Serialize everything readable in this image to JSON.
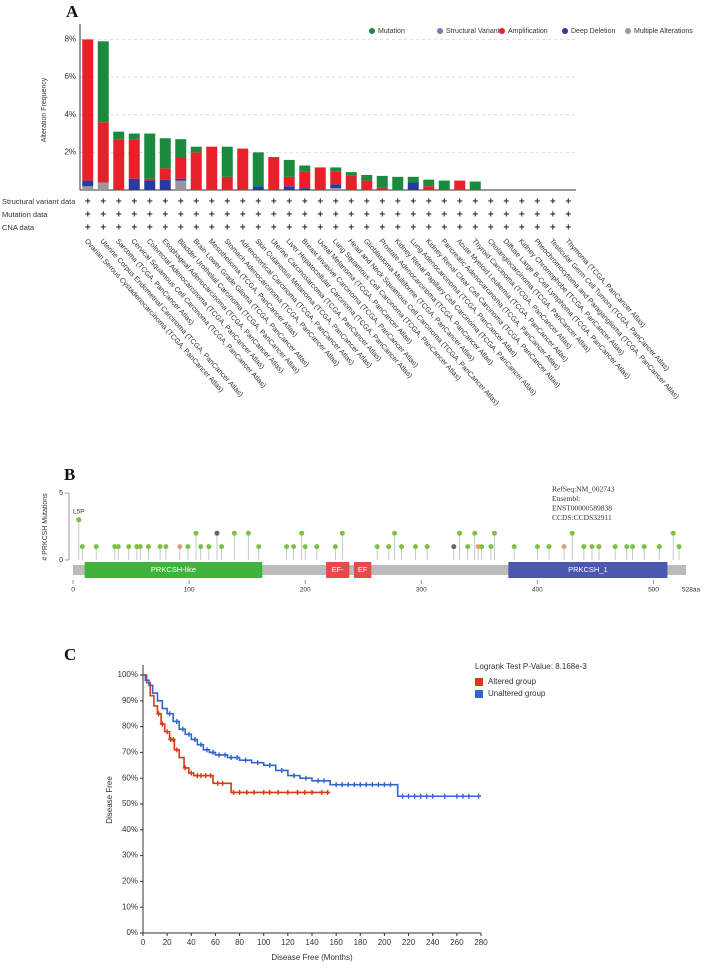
{
  "chart_data": [
    {
      "type": "bar",
      "panel_label": "A",
      "ylabel": "Alteration Frequency",
      "categories": [
        "Ovarian Serous Cystadenocarcinoma (TCGA, PanCancer Atlas)",
        "Uterine Corpus Endometrial Carcinoma (TCGA, PanCancer Atlas)",
        "Sarcoma (TCGA, PanCancer Atlas)",
        "Cervical Squamous Cell Carcinoma (TCGA, PanCancer Atlas)",
        "Colorectal Adenocarcinoma (TCGA, PanCancer Atlas)",
        "Esophageal Adenocarcinoma (TCGA, PanCancer Atlas)",
        "Bladder Urothelial Carcinoma (TCGA, PanCancer Atlas)",
        "Brain Lower Grade Glioma (TCGA, PanCancer Atlas)",
        "Mesothelioma (TCGA, PanCancer Atlas)",
        "Stomach Adenocarcinoma (TCGA, PanCancer Atlas)",
        "Adrenocortical Carcinoma (TCGA, PanCancer Atlas)",
        "Skin Cutaneous Melanoma (TCGA, PanCancer Atlas)",
        "Uterine Carcinosarcoma (TCGA, PanCancer Atlas)",
        "Liver Hepatocellular Carcinoma (TCGA, PanCancer Atlas)",
        "Breast Invasive Carcinoma (TCGA, PanCancer Atlas)",
        "Uveal Melanoma (TCGA, PanCancer Atlas)",
        "Lung Squamous Cell Carcinoma (TCGA, PanCancer Atlas)",
        "Head and Neck Squamous Cell Carcinoma (TCGA, PanCancer Atlas)",
        "Glioblastoma Multiforme (TCGA, PanCancer Atlas)",
        "Prostate Adenocarcinoma (TCGA, PanCancer Atlas)",
        "Kidney Renal Papillary Cell Carcinoma (TCGA, PanCancer Atlas)",
        "Lung Adenocarcinoma (TCGA, PanCancer Atlas)",
        "Kidney Renal Clear Cell Carcinoma (TCGA, PanCancer Atlas)",
        "Pancreatic Adenocarcinoma (TCGA, PanCancer Atlas)",
        "Acute Myeloid Leukemia (TCGA, PanCancer Atlas)",
        "Thyroid Carcinoma (TCGA, PanCancer Atlas)",
        "Cholangiocarcinoma (TCGA, PanCancer Atlas)",
        "Diffuse Large B-Cell Lymphoma (TCGA, PanCancer Atlas)",
        "Kidney Chromophobe (TCGA, PanCancer Atlas)",
        "Pheochromocytoma and Paraganglioma (TCGA, PanCancer Atlas)",
        "Testicular Germ Cell Tumors (TCGA, PanCancer Atlas)",
        "Thymoma (TCGA, PanCancer Atlas)"
      ],
      "series": [
        {
          "name": "Multiple Alterations",
          "color": "#999999",
          "values": [
            0.2,
            0.4,
            0,
            0,
            0,
            0,
            0.5,
            0,
            0,
            0,
            0,
            0,
            0,
            0,
            0,
            0,
            0.1,
            0,
            0,
            0,
            0,
            0,
            0,
            0,
            0,
            0,
            0,
            0,
            0,
            0,
            0,
            0
          ]
        },
        {
          "name": "Deep Deletion",
          "color": "#2a3a9c",
          "values": [
            0.3,
            0,
            0,
            0.6,
            0.5,
            0.55,
            0.1,
            0,
            0,
            0,
            0,
            0.2,
            0,
            0.2,
            0.1,
            0,
            0.2,
            0,
            0,
            0,
            0,
            0.4,
            0,
            0,
            0,
            0,
            0,
            0,
            0,
            0,
            0,
            0
          ]
        },
        {
          "name": "Amplification",
          "color": "#e8202a",
          "values": [
            7.5,
            3.2,
            2.7,
            2.1,
            0.1,
            0.6,
            1.1,
            2.0,
            2.3,
            0.7,
            2.2,
            0,
            1.75,
            0.5,
            0.9,
            1.2,
            0.7,
            0.75,
            0.5,
            0.15,
            0,
            0,
            0.2,
            0,
            0.5,
            0,
            0,
            0,
            0,
            0,
            0,
            0
          ]
        },
        {
          "name": "Structural Variant",
          "color": "#8a70a8",
          "values": [
            0,
            0,
            0,
            0,
            0,
            0,
            0,
            0,
            0,
            0,
            0,
            0,
            0,
            0,
            0,
            0,
            0,
            0,
            0,
            0,
            0,
            0,
            0,
            0,
            0,
            0,
            0,
            0,
            0,
            0,
            0,
            0
          ]
        },
        {
          "name": "Mutation",
          "color": "#1b8a3e",
          "values": [
            0,
            4.3,
            0.4,
            0.3,
            2.4,
            1.6,
            1.0,
            0.3,
            0,
            1.6,
            0,
            1.8,
            0,
            0.9,
            0.3,
            0,
            0.2,
            0.2,
            0.3,
            0.6,
            0.7,
            0.3,
            0.35,
            0.5,
            0,
            0.45,
            0,
            0,
            0,
            0,
            0,
            0
          ]
        }
      ],
      "legend_order": [
        "Mutation",
        "Structural Variant",
        "Amplification",
        "Deep Deletion",
        "Multiple Alterations"
      ],
      "ylim": [
        0,
        8.5
      ],
      "yticks": [
        {
          "value": 2,
          "label": "2%"
        },
        {
          "value": 4,
          "label": "4%"
        },
        {
          "value": 6,
          "label": "6%"
        },
        {
          "value": 8,
          "label": "8%"
        }
      ],
      "grid": true,
      "legend": "top-right",
      "profile_rows": [
        "Structural variant data",
        "Mutation data",
        "CNA data"
      ],
      "profile_symbol": "+"
    },
    {
      "type": "lollipop",
      "panel_label": "B",
      "ylabel": "# PRKCSH Mutations",
      "xlim": [
        0,
        528
      ],
      "xticks": [
        0,
        100,
        200,
        300,
        400,
        500
      ],
      "x_end_label": "528aa",
      "ylim": [
        0,
        5
      ],
      "yticks": [
        0,
        5
      ],
      "protein_info": [
        "RefSeq:NM_002743",
        "Ensembl:",
        "ENST00000589838",
        "CCDS:CCDS32911"
      ],
      "domains": [
        {
          "name": "PRKCSH-like",
          "start": 10,
          "end": 163,
          "color": "#3eb43a"
        },
        {
          "name": "EF-",
          "start": 218,
          "end": 238,
          "color": "#e84a4a"
        },
        {
          "name": "EF",
          "start": 242,
          "end": 257,
          "color": "#e84a4a"
        },
        {
          "name": "PRKCSH_1",
          "start": 375,
          "end": 512,
          "color": "#4b57b0"
        }
      ],
      "annotation": "L5P",
      "mutations": {
        "positions": [
          5,
          8,
          20,
          36,
          39,
          48,
          55,
          58,
          65,
          75,
          80,
          92,
          99,
          106,
          110,
          117,
          124,
          128,
          139,
          151,
          160,
          184,
          190,
          197,
          200,
          210,
          226,
          232,
          262,
          272,
          277,
          283,
          295,
          305,
          328,
          333,
          340,
          346,
          349,
          352,
          360,
          363,
          380,
          400,
          410,
          423,
          430,
          440,
          447,
          453,
          467,
          477,
          482,
          492,
          505,
          517,
          522
        ],
        "counts": [
          3,
          1,
          1,
          1,
          1,
          1,
          1,
          1,
          1,
          1,
          1,
          1,
          1,
          2,
          1,
          1,
          2,
          1,
          2,
          2,
          1,
          1,
          1,
          2,
          1,
          1,
          1,
          2,
          1,
          1,
          2,
          1,
          1,
          1,
          1,
          2,
          1,
          2,
          1,
          1,
          1,
          2,
          1,
          1,
          1,
          1,
          2,
          1,
          1,
          1,
          1,
          1,
          1,
          1,
          1,
          2,
          1
        ],
        "colors": [
          "#7cc142",
          "#7cc142",
          "#7cc142",
          "#7cc142",
          "#7cc142",
          "#7cc142",
          "#7cc142",
          "#7cc142",
          "#7cc142",
          "#7cc142",
          "#7cc142",
          "#d9a36e",
          "#7cc142",
          "#7cc142",
          "#7cc142",
          "#7cc142",
          "#666666",
          "#7cc142",
          "#7cc142",
          "#7cc142",
          "#7cc142",
          "#7cc142",
          "#7cc142",
          "#7cc142",
          "#7cc142",
          "#7cc142",
          "#7cc142",
          "#7cc142",
          "#7cc142",
          "#7cc142",
          "#7cc142",
          "#7cc142",
          "#7cc142",
          "#7cc142",
          "#666666",
          "#7cc142",
          "#7cc142",
          "#7cc142",
          "#d9a36e",
          "#7cc142",
          "#7cc142",
          "#7cc142",
          "#7cc142",
          "#7cc142",
          "#7cc142",
          "#d9a36e",
          "#7cc142",
          "#7cc142",
          "#7cc142",
          "#7cc142",
          "#7cc142",
          "#7cc142",
          "#7cc142",
          "#7cc142",
          "#7cc142",
          "#7cc142",
          "#7cc142"
        ]
      }
    },
    {
      "type": "km",
      "panel_label": "C",
      "xlabel": "Disease Free (Months)",
      "ylabel": "Disease Free",
      "legend_title": "Logrank Test P-Value: 8.168e-3",
      "xlim": [
        0,
        280
      ],
      "xticks": [
        0,
        20,
        40,
        60,
        80,
        100,
        120,
        140,
        160,
        180,
        200,
        220,
        240,
        260,
        280
      ],
      "ylim": [
        0,
        100
      ],
      "yticks": [
        {
          "value": 0,
          "label": "0%"
        },
        {
          "value": 10,
          "label": "10%"
        },
        {
          "value": 20,
          "label": "20%"
        },
        {
          "value": 30,
          "label": "30%"
        },
        {
          "value": 40,
          "label": "40%"
        },
        {
          "value": 50,
          "label": "50%"
        },
        {
          "value": 60,
          "label": "60%"
        },
        {
          "value": 70,
          "label": "70%"
        },
        {
          "value": 80,
          "label": "80%"
        },
        {
          "value": 90,
          "label": "90%"
        },
        {
          "value": 100,
          "label": "100%"
        }
      ],
      "series": [
        {
          "name": "Altered group",
          "color": "#dc3912",
          "x": [
            0,
            3,
            6,
            9,
            12,
            15,
            18,
            22,
            26,
            30,
            34,
            38,
            42,
            58,
            73,
            153
          ],
          "values": [
            100,
            97,
            92,
            88,
            85,
            81,
            78,
            75,
            71,
            68,
            64,
            62,
            61,
            58,
            54.5,
            54.5
          ],
          "censor_x": [
            13,
            16,
            20,
            23,
            25,
            28,
            35,
            40,
            45,
            48,
            52,
            56,
            62,
            66,
            75,
            80,
            86,
            92,
            100,
            105,
            112,
            120,
            128,
            134,
            140,
            148,
            153
          ]
        },
        {
          "name": "Unaltered group",
          "color": "#3366cc",
          "x": [
            0,
            2,
            5,
            8,
            12,
            16,
            20,
            25,
            30,
            35,
            40,
            45,
            50,
            55,
            60,
            70,
            80,
            90,
            100,
            110,
            120,
            130,
            140,
            155,
            211,
            280
          ],
          "values": [
            100,
            98,
            96,
            93,
            90,
            87,
            85,
            82,
            79,
            77,
            75,
            73,
            71,
            70,
            69,
            68,
            67,
            66,
            65,
            63,
            61,
            60,
            59,
            57.5,
            53,
            53
          ],
          "censor_x": [
            22,
            28,
            33,
            38,
            43,
            48,
            53,
            58,
            63,
            68,
            73,
            78,
            85,
            95,
            105,
            115,
            125,
            135,
            145,
            150,
            160,
            165,
            170,
            175,
            180,
            185,
            190,
            195,
            200,
            205,
            215,
            220,
            225,
            230,
            235,
            240,
            250,
            260,
            265,
            270,
            278
          ]
        }
      ]
    }
  ]
}
